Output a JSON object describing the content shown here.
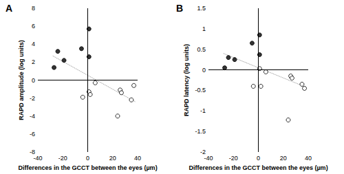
{
  "chart_data": [
    {
      "type": "scatter",
      "title": "A",
      "x_label": "Differences in the GCCT between the eyes (µm)",
      "y_label": "RAPD amplitude (log units)",
      "xlim": [
        -40,
        40
      ],
      "xticks": [
        -40,
        -20,
        0,
        20,
        40
      ],
      "ylim": [
        -8,
        8
      ],
      "yticks": [
        -8,
        -6,
        -4,
        -2,
        0,
        2,
        4,
        6,
        8
      ],
      "series": [
        {
          "marker": "circle",
          "color": "#000000",
          "x": [
            -27,
            -24,
            -19,
            -5,
            1,
            1
          ],
          "values": [
            1.4,
            3.2,
            2.2,
            3.5,
            5.7,
            2.6
          ]
        },
        {
          "marker": "open_circle",
          "color": "#000000",
          "x": [
            -4,
            1,
            2,
            6,
            24,
            26,
            27,
            35,
            37
          ],
          "values": [
            -1.9,
            -1.3,
            -1.6,
            -0.3,
            -4.0,
            -1.1,
            -1.4,
            -2.2,
            -0.6
          ]
        },
        {
          "type": "line",
          "line_style": "dotted",
          "color": "#888888",
          "x": [
            -28,
            38
          ],
          "values": [
            2.7,
            -2.4
          ]
        }
      ]
    },
    {
      "type": "scatter",
      "title": "B",
      "x_label": "Differences in the GCCT between the eyes (µm)",
      "y_label": "RAPD latency (log units)",
      "xlim": [
        -40,
        40
      ],
      "xticks": [
        -40,
        -20,
        0,
        20,
        40
      ],
      "ylim": [
        -2,
        1.5
      ],
      "yticks": [
        -2,
        -1.5,
        -1,
        -0.5,
        0,
        0.5,
        1,
        1.5
      ],
      "series": [
        {
          "marker": "circle",
          "color": "#000000",
          "x": [
            -27,
            -24,
            -19,
            -5,
            1,
            1
          ],
          "values": [
            0.05,
            0.3,
            0.25,
            0.65,
            0.85,
            0.37
          ]
        },
        {
          "marker": "open_circle",
          "color": "#000000",
          "x": [
            -4,
            1,
            2,
            6,
            24,
            26,
            27,
            35,
            37
          ],
          "values": [
            -0.4,
            0.03,
            -0.4,
            -0.05,
            -1.22,
            -0.15,
            -0.2,
            -0.35,
            -0.45
          ]
        },
        {
          "type": "line",
          "line_style": "dotted",
          "color": "#888888",
          "x": [
            -28,
            38
          ],
          "values": [
            0.4,
            -0.42
          ]
        }
      ]
    }
  ]
}
